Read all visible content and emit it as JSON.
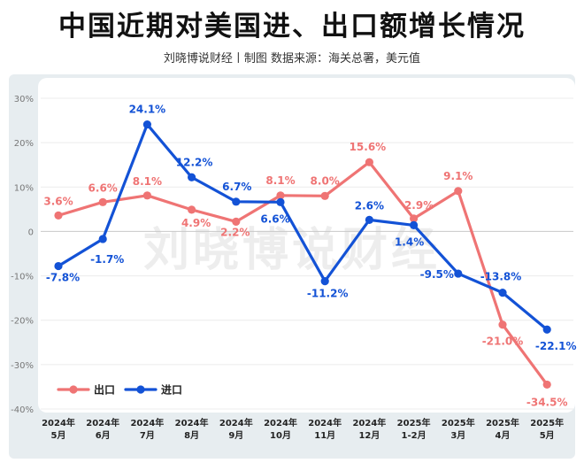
{
  "header": {
    "title": "中国近期对美国进、出口额增长情况",
    "subtitle": "刘晓博说财经丨制图    数据来源：海关总署，美元值"
  },
  "watermark": "刘晓博说财经",
  "chart_data": {
    "type": "line",
    "categories": [
      [
        "2024年",
        "5月"
      ],
      [
        "2024年",
        "6月"
      ],
      [
        "2024年",
        "7月"
      ],
      [
        "2024年",
        "8月"
      ],
      [
        "2024年",
        "9月"
      ],
      [
        "2024年",
        "10月"
      ],
      [
        "2024年",
        "11月"
      ],
      [
        "2024年",
        "12月"
      ],
      [
        "2025年",
        "1-2月"
      ],
      [
        "2025年",
        "3月"
      ],
      [
        "2025年",
        "4月"
      ],
      [
        "2025年",
        "5月"
      ]
    ],
    "y_ticks": [
      "30%",
      "20%",
      "10%",
      "0",
      "-10%",
      "-20%",
      "-30%",
      "-40%"
    ],
    "ylim": [
      -40,
      30
    ],
    "grid": true,
    "legend_position": "bottom-left",
    "series": [
      {
        "name": "出口",
        "color": "#ef7474",
        "values": [
          3.6,
          6.6,
          8.1,
          4.9,
          2.2,
          8.1,
          8.0,
          15.6,
          2.9,
          9.1,
          -21.0,
          -34.5
        ],
        "labels": [
          "3.6%",
          "6.6%",
          "8.1%",
          "4.9%",
          "2.2%",
          "8.1%",
          "8.0%",
          "15.6%",
          "2.9%",
          "9.1%",
          "-21.0%",
          "-34.5%"
        ]
      },
      {
        "name": "进口",
        "color": "#1352d6",
        "values": [
          -7.8,
          -1.7,
          24.1,
          12.2,
          6.7,
          6.6,
          -11.2,
          2.6,
          1.4,
          -9.5,
          -13.8,
          -22.1
        ],
        "labels": [
          "-7.8%",
          "-1.7%",
          "24.1%",
          "12.2%",
          "6.7%",
          "6.6%",
          "-11.2%",
          "2.6%",
          "1.4%",
          "-9.5%",
          "-13.8%",
          "-22.1%"
        ]
      }
    ]
  }
}
